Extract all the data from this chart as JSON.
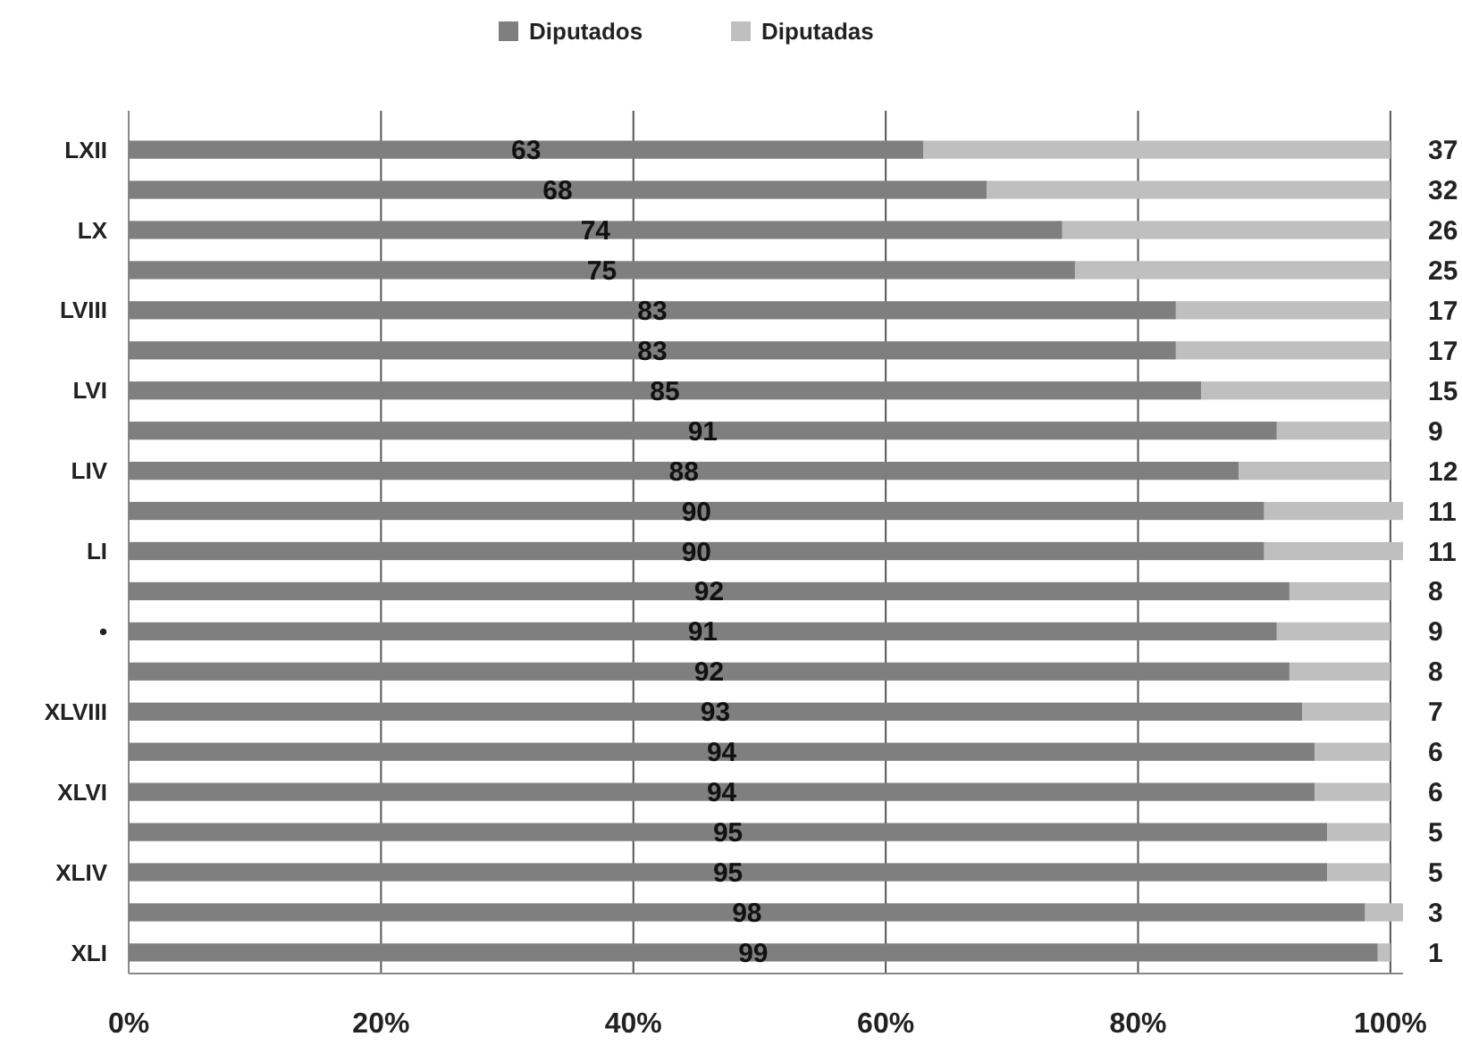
{
  "chart_data": {
    "type": "bar",
    "orientation": "horizontal",
    "stacked": true,
    "categories": [
      "LXII",
      null,
      "LX",
      null,
      "LVIII",
      null,
      "LVI",
      null,
      "LIV",
      null,
      "LI",
      null,
      "•",
      null,
      "XLVIII",
      null,
      "XLVI",
      null,
      "XLIV",
      null,
      "XLI"
    ],
    "series": [
      {
        "name": "Diputados",
        "color": "#7f7f7f",
        "values": [
          63,
          68,
          74,
          75,
          83,
          83,
          85,
          91,
          88,
          90,
          90,
          92,
          91,
          92,
          93,
          94,
          94,
          95,
          95,
          98,
          99
        ]
      },
      {
        "name": "Diputadas",
        "color": "#bfbfbf",
        "values": [
          37,
          32,
          26,
          25,
          17,
          17,
          15,
          9,
          12,
          11,
          11,
          8,
          9,
          8,
          7,
          6,
          6,
          5,
          5,
          3,
          1
        ]
      }
    ],
    "xlim": [
      0,
      101
    ],
    "xticks": [
      {
        "value": 0,
        "label": "0%"
      },
      {
        "value": 20,
        "label": "20%"
      },
      {
        "value": 40,
        "label": "40%"
      },
      {
        "value": 60,
        "label": "60%"
      },
      {
        "value": 80,
        "label": "80%"
      },
      {
        "value": 100,
        "label": "100%"
      }
    ],
    "grid": "x",
    "legend": "top",
    "data_labels": true
  }
}
